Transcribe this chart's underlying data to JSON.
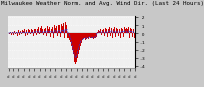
{
  "title": "Milwaukee Weather Norm. and Avg. Wind Dir. (Last 24 Hours)",
  "background_color": "#f0f0f0",
  "grid_color": "#ffffff",
  "bar_color": "#cc0000",
  "line_color": "#3333cc",
  "fig_bg": "#c8c8c8",
  "n_points": 144,
  "bar_values": [
    0.1,
    -0.1,
    0.2,
    -0.2,
    0.15,
    -0.15,
    0.1,
    0.3,
    -0.1,
    0.2,
    -0.3,
    0.4,
    -0.2,
    0.3,
    0.2,
    -0.1,
    0.4,
    0.3,
    0.5,
    -0.3,
    0.4,
    -0.2,
    0.5,
    0.3,
    0.4,
    -0.1,
    0.5,
    0.4,
    -0.3,
    0.6,
    0.5,
    0.7,
    -0.2,
    0.6,
    0.8,
    -0.1,
    0.7,
    0.9,
    0.6,
    -0.2,
    0.8,
    0.5,
    0.7,
    -0.3,
    0.9,
    0.6,
    0.8,
    -0.4,
    0.7,
    0.5,
    0.8,
    -0.5,
    1.0,
    0.7,
    0.9,
    -0.3,
    1.1,
    0.8,
    1.0,
    -0.4,
    1.2,
    0.9,
    1.3,
    -0.5,
    1.4,
    1.0,
    1.5,
    -0.6,
    -0.5,
    -0.8,
    -1.0,
    -1.5,
    -2.0,
    -2.5,
    -3.0,
    -3.5,
    -3.8,
    -3.5,
    -3.0,
    -2.5,
    -2.0,
    -1.5,
    -1.2,
    -1.0,
    -0.8,
    -0.7,
    -0.6,
    -0.8,
    -0.7,
    -0.6,
    -0.7,
    -0.5,
    -0.4,
    -0.5,
    -0.6,
    -0.5,
    -0.7,
    -0.6,
    -0.5,
    -0.4,
    0.1,
    0.2,
    0.4,
    0.3,
    0.5,
    -0.2,
    0.4,
    0.6,
    0.5,
    -0.3,
    0.7,
    0.5,
    -0.4,
    0.6,
    0.8,
    -0.3,
    0.7,
    0.9,
    -0.5,
    0.6,
    0.8,
    -0.4,
    0.7,
    0.5,
    -0.3,
    0.6,
    0.4,
    -0.5,
    0.7,
    0.6,
    -0.4,
    0.8,
    0.5,
    0.7,
    -0.6,
    0.6,
    0.8,
    -0.5,
    0.7,
    0.5,
    -0.4,
    0.6,
    -0.5,
    0.4
  ],
  "line_values": [
    0.05,
    0.05,
    0.1,
    0.08,
    0.1,
    0.05,
    0.08,
    0.12,
    0.08,
    0.1,
    0.05,
    0.15,
    0.1,
    0.12,
    0.1,
    0.08,
    0.15,
    0.12,
    0.18,
    0.05,
    0.15,
    0.1,
    0.18,
    0.12,
    0.15,
    0.1,
    0.18,
    0.15,
    0.05,
    0.22,
    0.18,
    0.25,
    0.1,
    0.22,
    0.28,
    0.1,
    0.25,
    0.3,
    0.22,
    0.08,
    0.28,
    0.2,
    0.25,
    0.05,
    0.32,
    0.22,
    0.28,
    0.08,
    0.25,
    0.18,
    0.28,
    0.05,
    0.35,
    0.25,
    0.32,
    0.08,
    0.38,
    0.28,
    0.35,
    0.08,
    0.42,
    0.32,
    0.45,
    0.08,
    0.5,
    0.35,
    0.52,
    0.08,
    0.05,
    -0.2,
    -0.5,
    -1.0,
    -1.5,
    -2.0,
    -2.5,
    -2.8,
    -3.0,
    -2.8,
    -2.3,
    -1.8,
    -1.4,
    -1.1,
    -0.9,
    -0.8,
    -0.7,
    -0.6,
    -0.5,
    -0.6,
    -0.55,
    -0.5,
    -0.55,
    -0.45,
    -0.4,
    -0.45,
    -0.5,
    -0.45,
    -0.55,
    -0.5,
    -0.42,
    -0.38,
    0.05,
    0.1,
    0.18,
    0.14,
    0.22,
    0.08,
    0.18,
    0.25,
    0.2,
    0.05,
    0.28,
    0.2,
    0.08,
    0.25,
    0.32,
    0.08,
    0.28,
    0.35,
    0.1,
    0.24,
    0.32,
    0.1,
    0.28,
    0.2,
    0.08,
    0.24,
    0.16,
    0.08,
    0.28,
    0.24,
    0.1,
    0.32,
    0.2,
    0.28,
    0.08,
    0.24,
    0.32,
    0.1,
    0.28,
    0.2,
    0.1,
    0.24,
    0.1,
    0.16
  ],
  "ylim": [
    -4.2,
    2.2
  ],
  "ytick_positions": [
    -4,
    -3,
    -2,
    -1,
    0,
    1,
    2
  ],
  "ytick_labels": [
    " -4",
    " -3",
    " -2",
    " -1",
    "  0",
    "  1",
    "  2"
  ],
  "xtick_count": 25,
  "title_fontsize": 4.2,
  "tick_fontsize": 3.2,
  "label_fontsize": 2.8,
  "right_axis_color": "#000000",
  "spine_color": "#888888"
}
